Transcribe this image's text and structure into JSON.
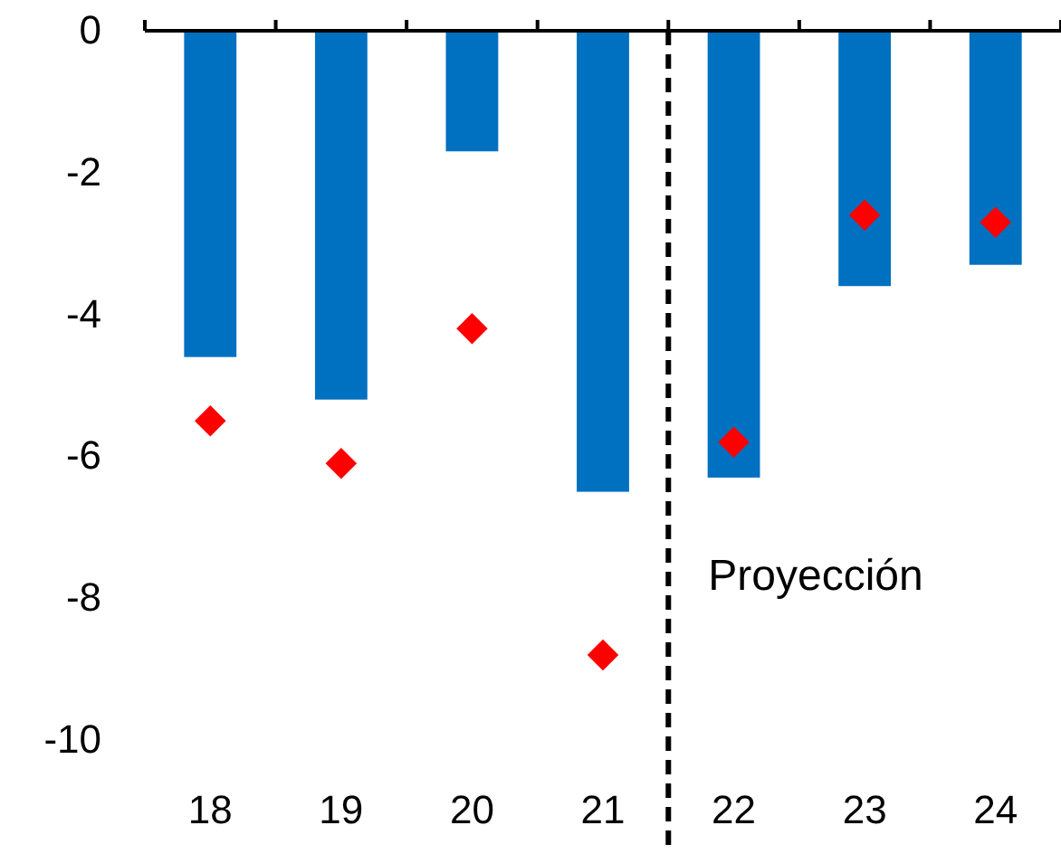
{
  "chart_data": {
    "type": "bar",
    "categories": [
      "18",
      "19",
      "20",
      "21",
      "22",
      "23",
      "24"
    ],
    "series": [
      {
        "color": "#0070c0",
        "values": [
          -4.6,
          -5.2,
          -1.7,
          -6.5,
          -6.3,
          -3.6,
          -3.3
        ]
      },
      {
        "type": "scatter",
        "color": "#ff0000",
        "marker": "diamond",
        "values": [
          -5.5,
          -6.1,
          -4.2,
          -8.8,
          -5.8,
          -2.6,
          -2.7
        ]
      }
    ],
    "ylim": [
      -10,
      0
    ],
    "yticks": [
      0,
      -2,
      -4,
      -6,
      -8,
      -10
    ],
    "annotations": [
      "Proyección"
    ],
    "grid": false
  }
}
